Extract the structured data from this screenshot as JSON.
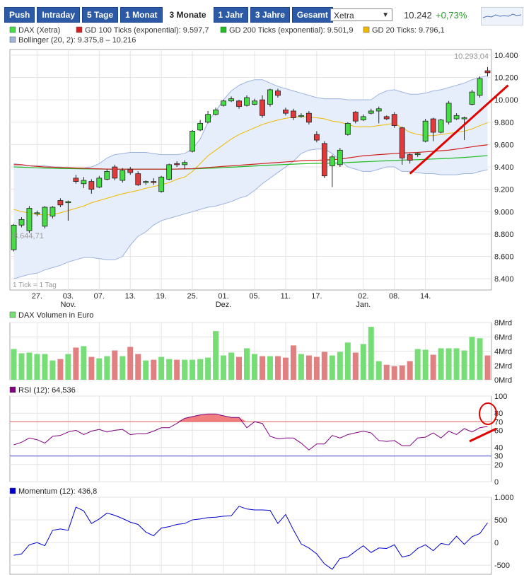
{
  "toolbar": {
    "tabs": [
      "Push",
      "Intraday",
      "5 Tage",
      "1 Monat",
      "3 Monate",
      "1 Jahr",
      "3 Jahre",
      "Gesamt"
    ],
    "active_tab": "3 Monate",
    "exchange": "Xetra",
    "last_price": "10.242",
    "change": "+0,73%"
  },
  "colors": {
    "up": "#44dd44",
    "down": "#e03a3a",
    "gd100": "#d02020",
    "gd200": "#22bb22",
    "gd20": "#f0b800",
    "bollinger_band": "#e6eefb",
    "bollinger_line": "#9db3dd",
    "rsi": "#800080",
    "rsi_fill": "#f08080",
    "momentum": "#0000cc",
    "vol_up": "#77dd77",
    "vol_down": "#e08080",
    "annotation": "#e00000"
  },
  "chart_data": [
    {
      "type": "candlestick",
      "legend": [
        {
          "label": "DAX (Xetra)",
          "color": "#44dd44"
        },
        {
          "label": "GD 100 Ticks (exponential): 9.597,7",
          "color": "#d02020"
        },
        {
          "label": "GD 200 Ticks (exponential): 9.501,9",
          "color": "#22bb22"
        },
        {
          "label": "GD 20 Ticks: 9.796,1",
          "color": "#f0b800"
        },
        {
          "label": "Bollinger (20, 2): 9.375,8 – 10.216",
          "color": "#9db3dd"
        }
      ],
      "max_label": "10.293,04",
      "min_label": "8.644,71",
      "footnote": "1 Tick = 1 Tag",
      "ylim": [
        8300,
        10450
      ],
      "yticks": [
        8400,
        8600,
        8800,
        9000,
        9200,
        9400,
        9600,
        9800,
        10000,
        10200,
        10400
      ],
      "ytick_labels": [
        "8.400",
        "8.600",
        "8.800",
        "9.000",
        "9.200",
        "9.400",
        "9.600",
        "9.800",
        "10.000",
        "10.200",
        "10.400"
      ],
      "xtick_labels": [
        {
          "i": 3,
          "label": "27.",
          "sub": ""
        },
        {
          "i": 7,
          "label": "03.",
          "sub": "Nov."
        },
        {
          "i": 11,
          "label": "07.",
          "sub": ""
        },
        {
          "i": 15,
          "label": "13.",
          "sub": ""
        },
        {
          "i": 19,
          "label": "19.",
          "sub": ""
        },
        {
          "i": 23,
          "label": "25.",
          "sub": ""
        },
        {
          "i": 27,
          "label": "01.",
          "sub": "Dez."
        },
        {
          "i": 31,
          "label": "05.",
          "sub": ""
        },
        {
          "i": 35,
          "label": "11.",
          "sub": ""
        },
        {
          "i": 39,
          "label": "17.",
          "sub": ""
        },
        {
          "i": 45,
          "label": "02.",
          "sub": "Jan."
        },
        {
          "i": 49,
          "label": "08.",
          "sub": ""
        },
        {
          "i": 53,
          "label": "14.",
          "sub": ""
        }
      ],
      "candles": [
        [
          8660,
          8880,
          8644.71,
          8890
        ],
        [
          8880,
          8930,
          8860,
          8950
        ],
        [
          8830,
          9030,
          8810,
          9050
        ],
        [
          8980,
          8990,
          8960,
          9010
        ],
        [
          8870,
          9040,
          8850,
          9050
        ],
        [
          8960,
          9040,
          8940,
          9050
        ],
        [
          9100,
          9060,
          9040,
          9120
        ],
        [
          9080,
          9090,
          8920,
          9100
        ],
        [
          9300,
          9270,
          9250,
          9330
        ],
        [
          9250,
          9280,
          9210,
          9310
        ],
        [
          9270,
          9200,
          9160,
          9290
        ],
        [
          9220,
          9300,
          9210,
          9320
        ],
        [
          9290,
          9360,
          9280,
          9380
        ],
        [
          9400,
          9300,
          9280,
          9420
        ],
        [
          9280,
          9370,
          9260,
          9390
        ],
        [
          9380,
          9350,
          9330,
          9400
        ],
        [
          9340,
          9240,
          9230,
          9360
        ],
        [
          9260,
          9270,
          9240,
          9280
        ],
        [
          9270,
          9260,
          9240,
          9300
        ],
        [
          9180,
          9310,
          9170,
          9320
        ],
        [
          9290,
          9420,
          9280,
          9430
        ],
        [
          9430,
          9420,
          9400,
          9450
        ],
        [
          9420,
          9440,
          9380,
          9460
        ],
        [
          9540,
          9720,
          9530,
          9730
        ],
        [
          9730,
          9790,
          9720,
          9820
        ],
        [
          9800,
          9870,
          9790,
          9900
        ],
        [
          9870,
          9910,
          9860,
          9930
        ],
        [
          9950,
          9990,
          9940,
          10000
        ],
        [
          9990,
          10010,
          9980,
          10030
        ],
        [
          9990,
          9940,
          9920,
          10000
        ],
        [
          9950,
          10020,
          9940,
          10040
        ],
        [
          9960,
          9990,
          9950,
          10010
        ],
        [
          10000,
          9860,
          9840,
          10040
        ],
        [
          9960,
          10090,
          9940,
          10100
        ],
        [
          10080,
          10040,
          10020,
          10100
        ],
        [
          9910,
          9880,
          9860,
          9930
        ],
        [
          9900,
          9840,
          9820,
          9920
        ],
        [
          9860,
          9860,
          9840,
          9880
        ],
        [
          9880,
          9800,
          9780,
          9900
        ],
        [
          9690,
          9640,
          9620,
          9720
        ],
        [
          9610,
          9320,
          9300,
          9630
        ],
        [
          9410,
          9490,
          9220,
          9510
        ],
        [
          9420,
          9550,
          9400,
          9570
        ],
        [
          9690,
          9790,
          9680,
          9800
        ],
        [
          9890,
          9810,
          9790,
          9900
        ],
        [
          9820,
          9850,
          9810,
          9870
        ],
        [
          9880,
          9900,
          9870,
          9920
        ],
        [
          9900,
          9920,
          9790,
          9940
        ],
        [
          9850,
          9830,
          9820,
          9860
        ],
        [
          9870,
          9770,
          9750,
          9890
        ],
        [
          9750,
          9480,
          9420,
          9760
        ],
        [
          9510,
          9460,
          9430,
          9520
        ],
        [
          9510,
          9520,
          9490,
          9530
        ],
        [
          9630,
          9810,
          9620,
          9830
        ],
        [
          9830,
          9710,
          9630,
          9840
        ],
        [
          9710,
          9820,
          9700,
          9830
        ],
        [
          9800,
          9970,
          9780,
          9990
        ],
        [
          9830,
          9860,
          9820,
          9880
        ],
        [
          9830,
          9840,
          9640,
          9850
        ],
        [
          9960,
          10070,
          9950,
          10090
        ],
        [
          10040,
          10190,
          10020,
          10210
        ],
        [
          10260,
          10242,
          10210,
          10293.04
        ]
      ],
      "gd100": [
        9420,
        9420,
        9410,
        9405,
        9400,
        9398,
        9395,
        9393,
        9390,
        9388,
        9385,
        9383,
        9381,
        9380,
        9380,
        9380,
        9380,
        9380,
        9380,
        9380,
        9380,
        9381,
        9383,
        9385,
        9390,
        9395,
        9400,
        9405,
        9410,
        9415,
        9420,
        9425,
        9430,
        9435,
        9440,
        9445,
        9450,
        9455,
        9458,
        9460,
        9462,
        9465,
        9470,
        9480,
        9490,
        9500,
        9505,
        9510,
        9515,
        9520,
        9525,
        9527,
        9530,
        9535,
        9540,
        9545,
        9550,
        9560,
        9570,
        9580,
        9590,
        9597.7
      ],
      "gd200": [
        9400,
        9398,
        9395,
        9392,
        9390,
        9388,
        9386,
        9385,
        9384,
        9383,
        9382,
        9381,
        9380,
        9380,
        9380,
        9380,
        9380,
        9380,
        9380,
        9380,
        9380,
        9381,
        9382,
        9383,
        9385,
        9388,
        9391,
        9395,
        9398,
        9401,
        9405,
        9409,
        9413,
        9416,
        9419,
        9422,
        9425,
        9428,
        9430,
        9432,
        9433,
        9434,
        9436,
        9440,
        9443,
        9446,
        9449,
        9452,
        9455,
        9458,
        9461,
        9463,
        9465,
        9468,
        9471,
        9474,
        9477,
        9481,
        9485,
        9490,
        9496,
        9501.9
      ],
      "gd20": [
        9020,
        9000,
        8990,
        8975,
        8970,
        8975,
        8990,
        9010,
        9030,
        9050,
        9080,
        9100,
        9120,
        9140,
        9160,
        9175,
        9190,
        9210,
        9225,
        9240,
        9260,
        9290,
        9310,
        9360,
        9430,
        9500,
        9550,
        9600,
        9650,
        9690,
        9720,
        9750,
        9780,
        9800,
        9820,
        9835,
        9845,
        9850,
        9845,
        9840,
        9830,
        9810,
        9800,
        9780,
        9760,
        9760,
        9760,
        9770,
        9780,
        9790,
        9750,
        9710,
        9690,
        9680,
        9680,
        9690,
        9700,
        9710,
        9720,
        9740,
        9770,
        9796.1
      ],
      "boll_upper": [
        9430,
        9420,
        9410,
        9410,
        9410,
        9400,
        9400,
        9390,
        9390,
        9390,
        9400,
        9430,
        9480,
        9510,
        9520,
        9530,
        9530,
        9530,
        9520,
        9510,
        9510,
        9510,
        9520,
        9560,
        9650,
        9800,
        9900,
        10000,
        10080,
        10130,
        10160,
        10180,
        10180,
        10150,
        10120,
        10100,
        10080,
        10060,
        10040,
        10020,
        10010,
        10010,
        10010,
        10000,
        10000,
        10000,
        10000,
        10050,
        10080,
        10090,
        10070,
        10050,
        10050,
        10060,
        10080,
        10090,
        10110,
        10130,
        10150,
        10180,
        10200,
        10216
      ],
      "boll_lower": [
        8400,
        8420,
        8440,
        8450,
        8480,
        8500,
        8520,
        8550,
        8570,
        8590,
        8590,
        8580,
        8570,
        8570,
        8600,
        8700,
        8780,
        8820,
        8880,
        8920,
        8940,
        8960,
        8980,
        9000,
        9020,
        9040,
        9050,
        9070,
        9090,
        9120,
        9140,
        9190,
        9250,
        9300,
        9350,
        9400,
        9450,
        9520,
        9550,
        9560,
        9560,
        9520,
        9460,
        9400,
        9380,
        9360,
        9360,
        9380,
        9400,
        9400,
        9360,
        9360,
        9350,
        9340,
        9340,
        9330,
        9330,
        9330,
        9340,
        9340,
        9360,
        9375.8
      ],
      "annotation": {
        "type": "trendline",
        "from": [
          51,
          9340
        ],
        "to": [
          62,
          10130
        ]
      }
    },
    {
      "type": "bar",
      "title": "DAX Volumen in Euro",
      "ylim": [
        0,
        8
      ],
      "yticks": [
        0,
        2,
        4,
        6,
        8
      ],
      "ytick_labels": [
        "0Mrd",
        "2Mrd",
        "4Mrd",
        "6Mrd",
        "8Mrd"
      ],
      "values": [
        4.3,
        3.7,
        3.8,
        3.6,
        3.6,
        2.7,
        2.9,
        3.6,
        4.5,
        4.7,
        3.2,
        3.0,
        3.3,
        4.1,
        3.3,
        4.6,
        3.6,
        2.7,
        2.8,
        3.2,
        2.9,
        2.8,
        2.8,
        2.8,
        2.9,
        3.1,
        6.8,
        3.4,
        3.8,
        3.2,
        4.4,
        3.6,
        3.3,
        3.3,
        3.3,
        3.1,
        4.8,
        3.6,
        3.4,
        3.2,
        3.9,
        3.4,
        3.9,
        5.2,
        3.8,
        5.0,
        7.4,
        2.6,
        2.1,
        1.9,
        2.0,
        2.6,
        4.3,
        4.2,
        3.5,
        4.4,
        4.4,
        4.4,
        4.1,
        6.0,
        5.8,
        3.4
      ],
      "up_down": "same as candles"
    },
    {
      "type": "line",
      "title": "RSI (12): 64,536",
      "ylim": [
        0,
        100
      ],
      "yticks": [
        0,
        20,
        30,
        40,
        60,
        70,
        80,
        100
      ],
      "ytick_labels": [
        "0",
        "20",
        "30",
        "40",
        "60",
        "70",
        "80",
        "100"
      ],
      "ref_lines": [
        {
          "value": 70,
          "color": "#e06060",
          "label": "70"
        },
        {
          "value": 30,
          "color": "#5555dd",
          "label": "30"
        }
      ],
      "values": [
        43,
        46,
        51,
        49,
        45,
        53,
        54,
        58,
        60,
        55,
        59,
        61,
        58,
        60,
        61,
        55,
        56,
        56,
        59,
        63,
        63,
        68,
        74,
        76,
        78,
        79,
        79,
        77,
        75,
        75,
        63,
        70,
        68,
        53,
        50,
        51,
        51,
        45,
        37,
        44,
        44,
        54,
        51,
        55,
        57,
        59,
        57,
        48,
        47,
        48,
        42,
        42,
        51,
        52,
        57,
        51,
        59,
        55,
        62,
        58,
        63,
        64.5
      ],
      "annotation": {
        "type": "circle+line"
      }
    },
    {
      "type": "line",
      "title": "Momentum (12): 436,8",
      "ylim": [
        -700,
        1000
      ],
      "yticks": [
        -500,
        0,
        500,
        1000
      ],
      "ytick_labels": [
        "-500",
        "0",
        "500",
        "1.000"
      ],
      "values": [
        -280,
        -250,
        -50,
        0,
        -70,
        270,
        300,
        270,
        780,
        700,
        420,
        520,
        650,
        600,
        530,
        450,
        400,
        230,
        150,
        320,
        350,
        400,
        420,
        500,
        520,
        550,
        560,
        580,
        590,
        800,
        740,
        720,
        720,
        710,
        420,
        620,
        280,
        -30,
        -120,
        -250,
        -470,
        -590,
        -350,
        -320,
        -190,
        -70,
        -220,
        -120,
        -130,
        -50,
        -320,
        -280,
        -130,
        -50,
        -180,
        -20,
        -50,
        140,
        -40,
        130,
        200,
        436.8
      ]
    }
  ]
}
